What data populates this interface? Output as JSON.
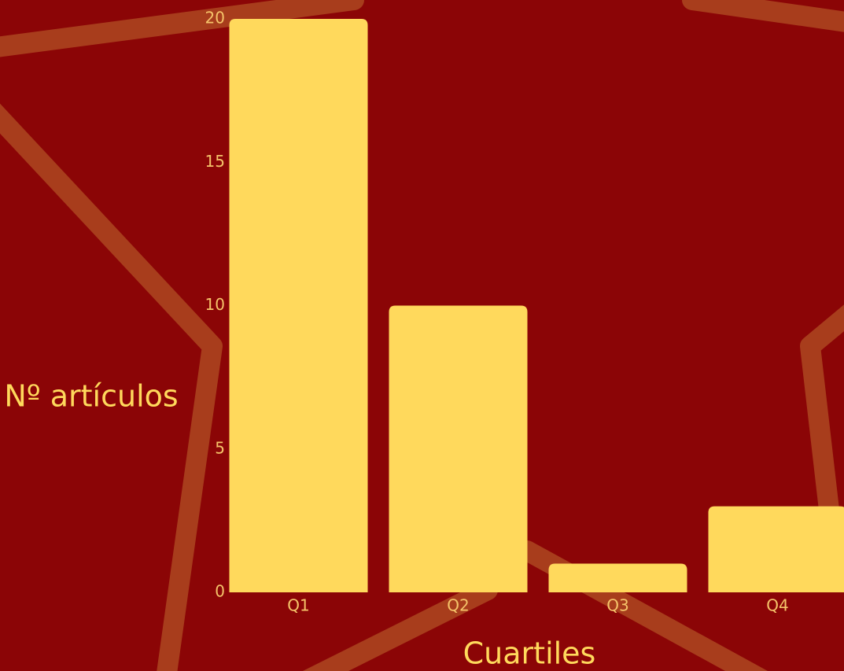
{
  "chart_data": {
    "type": "bar",
    "categories": [
      "Q1",
      "Q2",
      "Q3",
      "Q4"
    ],
    "values": [
      20,
      10,
      1,
      3
    ],
    "color": "#ffd95c",
    "ylim": [
      0,
      20
    ],
    "yticks": [
      0,
      5,
      10,
      15,
      20
    ],
    "ylabel": "Nº artículos",
    "xlabel": "Cuartiles"
  }
}
